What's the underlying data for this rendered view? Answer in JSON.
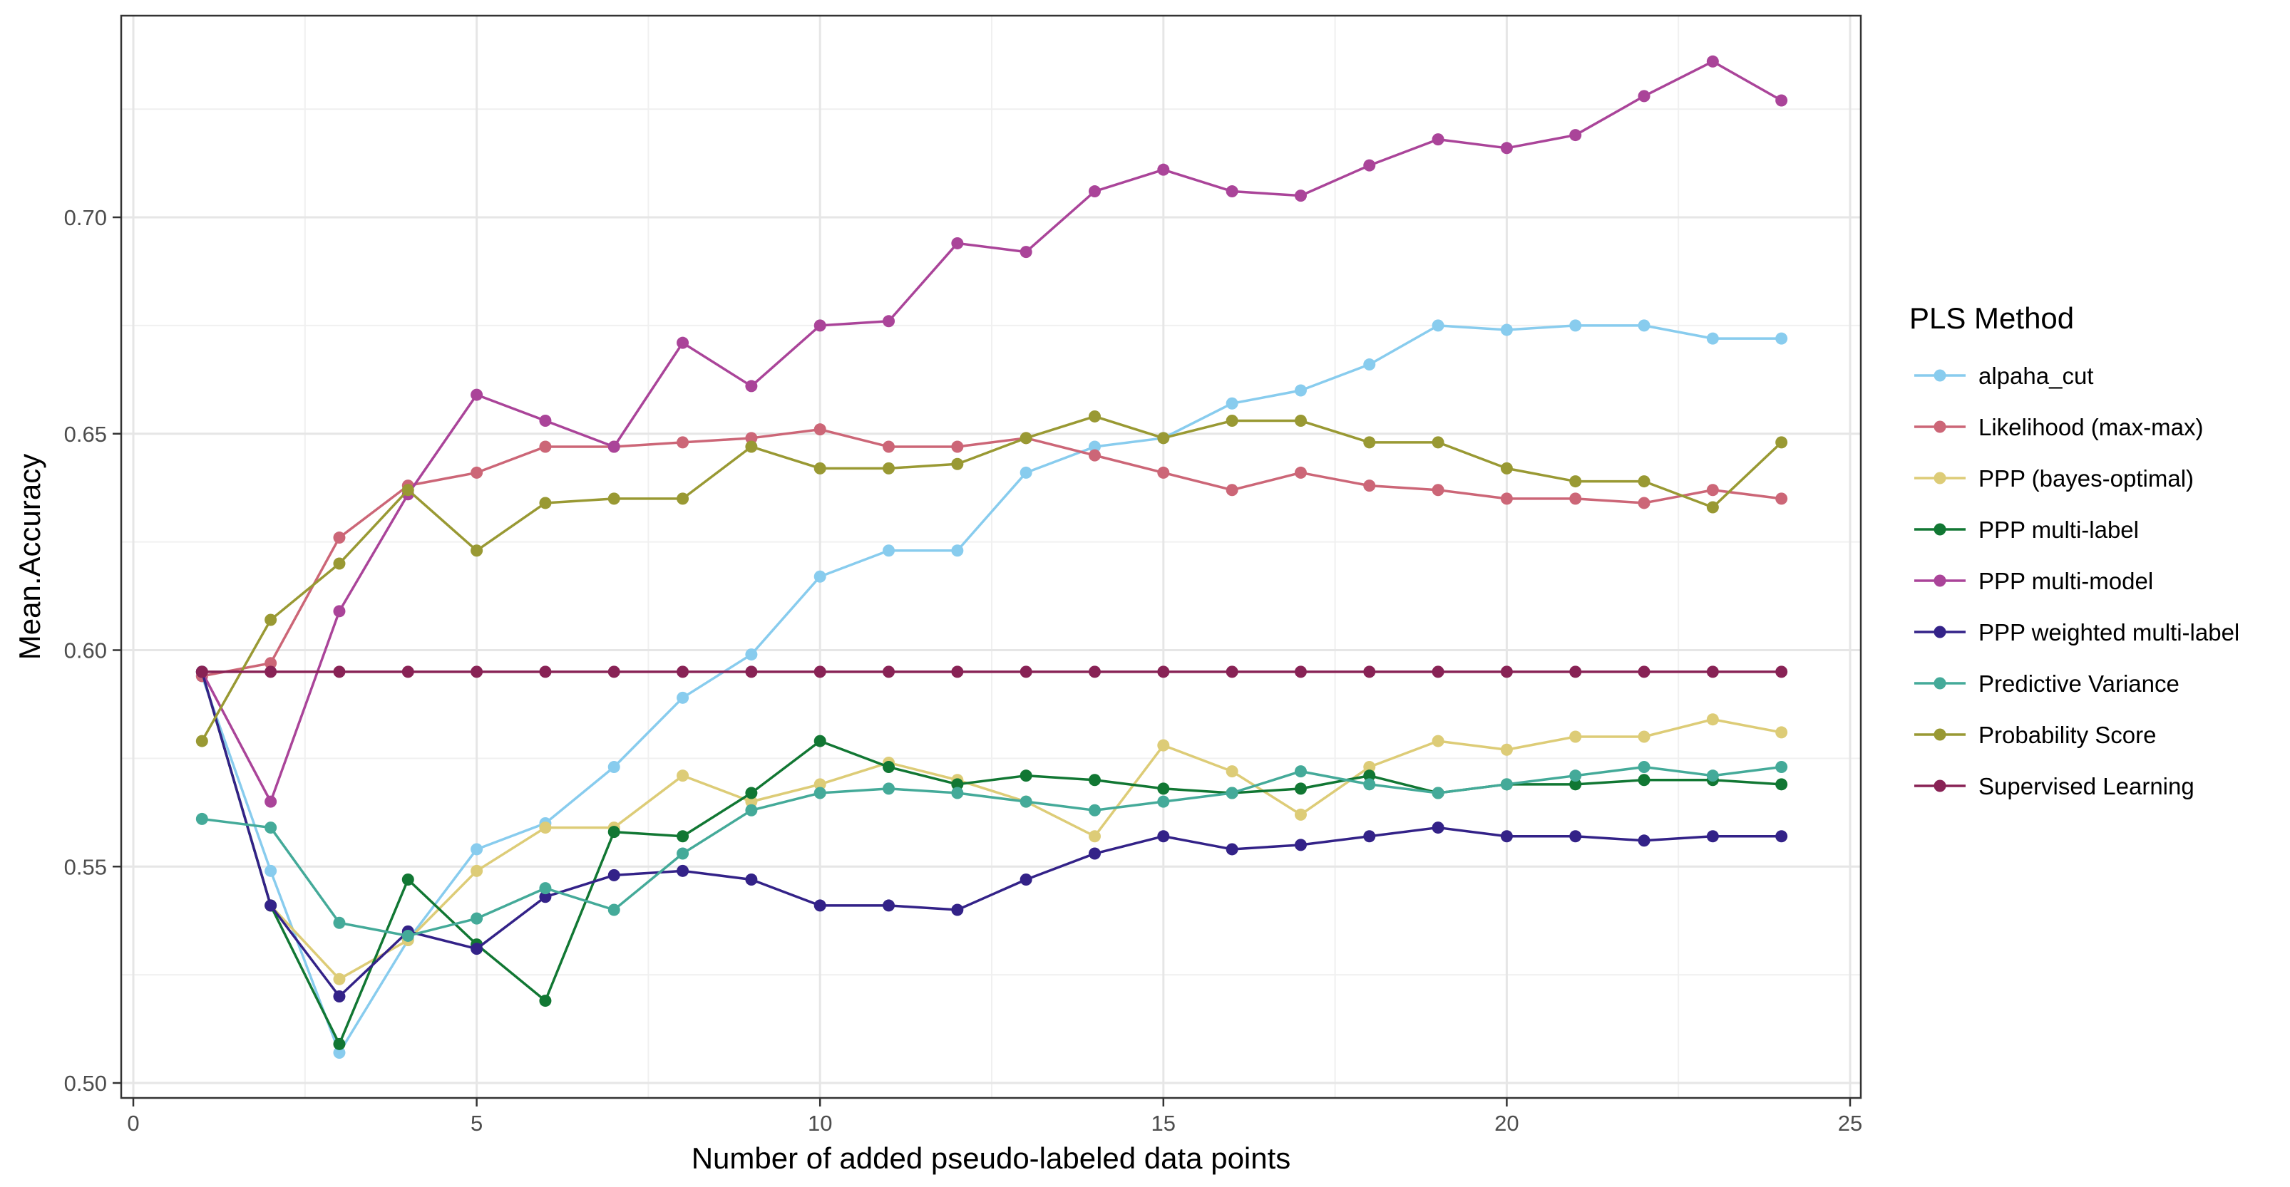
{
  "chart_data": {
    "type": "line",
    "title": "",
    "xlabel": "Number of added pseudo-labeled data points",
    "ylabel": "Mean.Accuracy",
    "xlim": [
      0,
      25
    ],
    "ylim": [
      0.5,
      0.74
    ],
    "x_ticks": [
      0,
      5,
      10,
      15,
      20,
      25
    ],
    "x_tick_labels": [
      "0",
      "5",
      "10",
      "15",
      "20",
      "25"
    ],
    "y_ticks": [
      0.5,
      0.55,
      0.6,
      0.65,
      0.7
    ],
    "y_tick_labels": [
      "0.50",
      "0.55",
      "0.60",
      "0.65",
      "0.70"
    ],
    "grid": true,
    "legend_title": "PLS Method",
    "legend_position": "right",
    "x": [
      1,
      2,
      3,
      4,
      5,
      6,
      7,
      8,
      9,
      10,
      11,
      12,
      13,
      14,
      15,
      16,
      17,
      18,
      19,
      20,
      21,
      22,
      23,
      24
    ],
    "series": [
      {
        "name": "alpaha_cut",
        "color": "#88CCEE",
        "values": [
          0.594,
          0.549,
          0.507,
          0.533,
          0.554,
          0.56,
          0.573,
          0.589,
          0.599,
          0.617,
          0.623,
          0.623,
          0.641,
          0.647,
          0.649,
          0.657,
          0.66,
          0.666,
          0.675,
          0.674,
          0.675,
          0.675,
          0.672,
          0.672
        ]
      },
      {
        "name": "Likelihood (max-max)",
        "color": "#CC6677",
        "values": [
          0.594,
          0.597,
          0.626,
          0.638,
          0.641,
          0.647,
          0.647,
          0.648,
          0.649,
          0.651,
          0.647,
          0.647,
          0.649,
          0.645,
          0.641,
          0.637,
          0.641,
          0.638,
          0.637,
          0.635,
          0.635,
          0.634,
          0.637,
          0.635
        ]
      },
      {
        "name": "PPP (bayes-optimal)",
        "color": "#DDCC77",
        "values": [
          0.595,
          0.541,
          0.524,
          0.533,
          0.549,
          0.559,
          0.559,
          0.571,
          0.565,
          0.569,
          0.574,
          0.57,
          0.565,
          0.557,
          0.578,
          0.572,
          0.562,
          0.573,
          0.579,
          0.577,
          0.58,
          0.58,
          0.584,
          0.581
        ]
      },
      {
        "name": "PPP multi-label",
        "color": "#117733",
        "values": [
          0.595,
          0.541,
          0.509,
          0.547,
          0.532,
          0.519,
          0.558,
          0.557,
          0.567,
          0.579,
          0.573,
          0.569,
          0.571,
          0.57,
          0.568,
          0.567,
          0.568,
          0.571,
          0.567,
          0.569,
          0.569,
          0.57,
          0.57,
          0.569
        ]
      },
      {
        "name": "PPP multi-model",
        "color": "#AA4499",
        "values": [
          0.595,
          0.565,
          0.609,
          0.636,
          0.659,
          0.653,
          0.647,
          0.671,
          0.661,
          0.675,
          0.676,
          0.694,
          0.692,
          0.706,
          0.711,
          0.706,
          0.705,
          0.712,
          0.718,
          0.716,
          0.719,
          0.728,
          0.736,
          0.727
        ]
      },
      {
        "name": "PPP weighted multi-label",
        "color": "#332288",
        "values": [
          0.595,
          0.541,
          0.52,
          0.535,
          0.531,
          0.543,
          0.548,
          0.549,
          0.547,
          0.541,
          0.541,
          0.54,
          0.547,
          0.553,
          0.557,
          0.554,
          0.555,
          0.557,
          0.559,
          0.557,
          0.557,
          0.556,
          0.557,
          0.557
        ]
      },
      {
        "name": "Predictive Variance",
        "color": "#44AA99",
        "values": [
          0.561,
          0.559,
          0.537,
          0.534,
          0.538,
          0.545,
          0.54,
          0.553,
          0.563,
          0.567,
          0.568,
          0.567,
          0.565,
          0.563,
          0.565,
          0.567,
          0.572,
          0.569,
          0.567,
          0.569,
          0.571,
          0.573,
          0.571,
          0.573
        ]
      },
      {
        "name": "Probability Score",
        "color": "#999933",
        "values": [
          0.579,
          0.607,
          0.62,
          0.637,
          0.623,
          0.634,
          0.635,
          0.635,
          0.647,
          0.642,
          0.642,
          0.643,
          0.649,
          0.654,
          0.649,
          0.653,
          0.653,
          0.648,
          0.648,
          0.642,
          0.639,
          0.639,
          0.633,
          0.648
        ]
      },
      {
        "name": "Supervised Learning",
        "color": "#882255",
        "values": [
          0.595,
          0.595,
          0.595,
          0.595,
          0.595,
          0.595,
          0.595,
          0.595,
          0.595,
          0.595,
          0.595,
          0.595,
          0.595,
          0.595,
          0.595,
          0.595,
          0.595,
          0.595,
          0.595,
          0.595,
          0.595,
          0.595,
          0.595,
          0.595
        ]
      }
    ]
  }
}
